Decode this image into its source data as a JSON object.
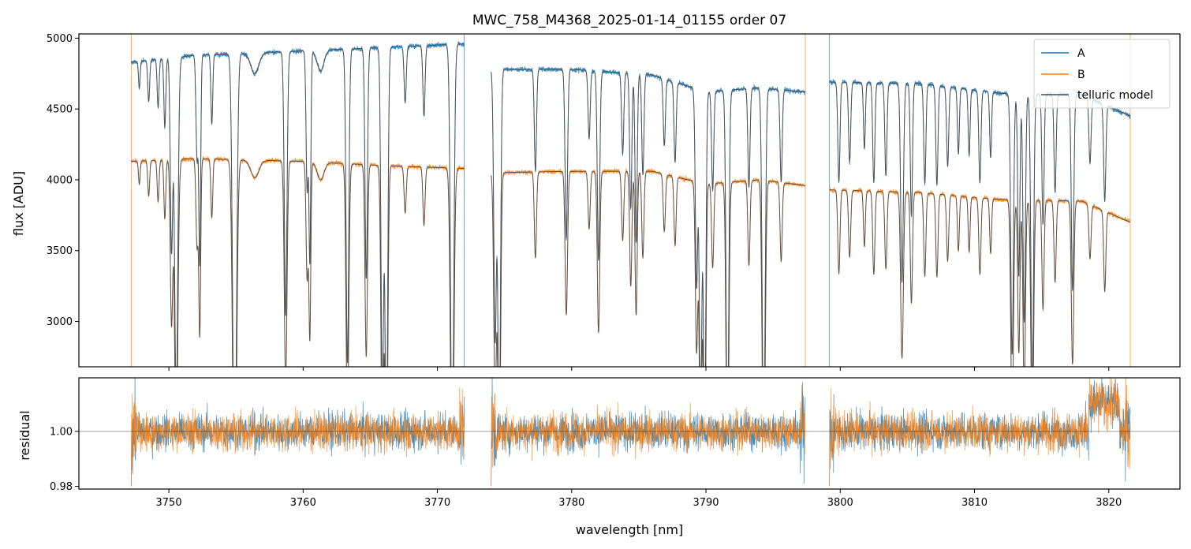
{
  "chart_data": [
    {
      "panel": "top",
      "type": "line",
      "title": "MWC_758_M4368_2025-01-14_01155  order 07",
      "xlabel": "",
      "ylabel": "flux [ADU]",
      "xlim": [
        3743.3,
        3825.3
      ],
      "ylim": [
        2680,
        5030
      ],
      "yticks": [
        3000,
        3500,
        4000,
        4500,
        5000
      ],
      "yticklabels": [
        "3000",
        "3500",
        "4000",
        "4500",
        "5000"
      ],
      "xticks": [
        3750,
        3760,
        3770,
        3780,
        3790,
        3800,
        3810,
        3820
      ],
      "legend": {
        "location": "top-right",
        "entries": [
          {
            "label": "A",
            "color": "#1f77b4"
          },
          {
            "label": "B",
            "color": "#ff7f0e"
          },
          {
            "label": "telluric model",
            "color": "#4d4d4d"
          }
        ]
      },
      "segments": [
        [
          3747.2,
          3772.0
        ],
        [
          3774.0,
          3797.4
        ],
        [
          3799.2,
          3821.6
        ]
      ],
      "series": [
        {
          "name": "A",
          "color": "#1f77b4",
          "continuum": [
            [
              3747.2,
              4830
            ],
            [
              3752,
              4880
            ],
            [
              3760,
              4910
            ],
            [
              3765,
              4930
            ],
            [
              3772,
              4960
            ],
            [
              3774,
              4780
            ],
            [
              3780,
              4780
            ],
            [
              3786,
              4740
            ],
            [
              3790,
              4620
            ],
            [
              3794,
              4650
            ],
            [
              3797.4,
              4620
            ],
            [
              3799.2,
              4690
            ],
            [
              3806,
              4680
            ],
            [
              3812,
              4610
            ],
            [
              3818,
              4600
            ],
            [
              3821.6,
              4450
            ]
          ]
        },
        {
          "name": "B",
          "color": "#ff7f0e",
          "continuum": [
            [
              3747.2,
              4130
            ],
            [
              3752,
              4150
            ],
            [
              3760,
              4130
            ],
            [
              3766,
              4100
            ],
            [
              3772,
              4080
            ],
            [
              3774,
              4050
            ],
            [
              3780,
              4060
            ],
            [
              3786,
              4060
            ],
            [
              3790,
              3970
            ],
            [
              3794,
              4000
            ],
            [
              3797.4,
              3960
            ],
            [
              3799.2,
              3930
            ],
            [
              3806,
              3910
            ],
            [
              3812,
              3860
            ],
            [
              3818,
              3850
            ],
            [
              3821.6,
              3700
            ]
          ]
        },
        {
          "name": "telluric model",
          "color": "#4d4d4d"
        }
      ],
      "absorption_lines": [
        {
          "x": 3747.8,
          "depth": 0.04,
          "width": 0.06
        },
        {
          "x": 3748.5,
          "depth": 0.06,
          "width": 0.07
        },
        {
          "x": 3749.2,
          "depth": 0.07,
          "width": 0.07
        },
        {
          "x": 3749.7,
          "depth": 0.1,
          "width": 0.07
        },
        {
          "x": 3750.2,
          "depth": 0.28,
          "width": 0.09
        },
        {
          "x": 3750.55,
          "depth": 0.5,
          "width": 0.12
        },
        {
          "x": 3752.1,
          "depth": 0.15,
          "width": 0.08
        },
        {
          "x": 3752.3,
          "depth": 0.3,
          "width": 0.07
        },
        {
          "x": 3753.2,
          "depth": 0.1,
          "width": 0.07
        },
        {
          "x": 3754.9,
          "depth": 0.65,
          "width": 0.14
        },
        {
          "x": 3756.4,
          "depth": 0.03,
          "width": 0.3
        },
        {
          "x": 3758.7,
          "depth": 0.38,
          "width": 0.1
        },
        {
          "x": 3760.3,
          "depth": 0.2,
          "width": 0.08
        },
        {
          "x": 3760.5,
          "depth": 0.3,
          "width": 0.07
        },
        {
          "x": 3761.3,
          "depth": 0.03,
          "width": 0.25
        },
        {
          "x": 3763.3,
          "depth": 0.45,
          "width": 0.1
        },
        {
          "x": 3764.7,
          "depth": 0.33,
          "width": 0.09
        },
        {
          "x": 3765.9,
          "depth": 0.5,
          "width": 0.1
        },
        {
          "x": 3766.2,
          "depth": 0.6,
          "width": 0.1
        },
        {
          "x": 3767.6,
          "depth": 0.08,
          "width": 0.08
        },
        {
          "x": 3769.0,
          "depth": 0.1,
          "width": 0.08
        },
        {
          "x": 3771.1,
          "depth": 0.6,
          "width": 0.12
        },
        {
          "x": 3774.3,
          "depth": 0.4,
          "width": 0.1
        },
        {
          "x": 3774.6,
          "depth": 0.55,
          "width": 0.1
        },
        {
          "x": 3777.3,
          "depth": 0.15,
          "width": 0.08
        },
        {
          "x": 3779.6,
          "depth": 0.25,
          "width": 0.09
        },
        {
          "x": 3781.3,
          "depth": 0.1,
          "width": 0.08
        },
        {
          "x": 3782.0,
          "depth": 0.28,
          "width": 0.09
        },
        {
          "x": 3783.8,
          "depth": 0.12,
          "width": 0.08
        },
        {
          "x": 3784.4,
          "depth": 0.2,
          "width": 0.08
        },
        {
          "x": 3784.8,
          "depth": 0.25,
          "width": 0.08
        },
        {
          "x": 3785.3,
          "depth": 0.15,
          "width": 0.08
        },
        {
          "x": 3786.9,
          "depth": 0.1,
          "width": 0.08
        },
        {
          "x": 3787.7,
          "depth": 0.12,
          "width": 0.08
        },
        {
          "x": 3789.3,
          "depth": 0.3,
          "width": 0.09
        },
        {
          "x": 3789.6,
          "depth": 0.5,
          "width": 0.1
        },
        {
          "x": 3789.9,
          "depth": 0.55,
          "width": 0.09
        },
        {
          "x": 3790.5,
          "depth": 0.15,
          "width": 0.08
        },
        {
          "x": 3791.6,
          "depth": 0.55,
          "width": 0.1
        },
        {
          "x": 3793.2,
          "depth": 0.15,
          "width": 0.08
        },
        {
          "x": 3794.3,
          "depth": 0.55,
          "width": 0.11
        },
        {
          "x": 3795.6,
          "depth": 0.14,
          "width": 0.08
        },
        {
          "x": 3799.9,
          "depth": 0.15,
          "width": 0.08
        },
        {
          "x": 3800.7,
          "depth": 0.12,
          "width": 0.08
        },
        {
          "x": 3801.8,
          "depth": 0.1,
          "width": 0.07
        },
        {
          "x": 3802.5,
          "depth": 0.15,
          "width": 0.08
        },
        {
          "x": 3803.4,
          "depth": 0.14,
          "width": 0.08
        },
        {
          "x": 3804.6,
          "depth": 0.3,
          "width": 0.1
        },
        {
          "x": 3805.3,
          "depth": 0.2,
          "width": 0.08
        },
        {
          "x": 3806.3,
          "depth": 0.15,
          "width": 0.08
        },
        {
          "x": 3807.2,
          "depth": 0.15,
          "width": 0.08
        },
        {
          "x": 3808.0,
          "depth": 0.12,
          "width": 0.08
        },
        {
          "x": 3808.8,
          "depth": 0.1,
          "width": 0.07
        },
        {
          "x": 3809.6,
          "depth": 0.1,
          "width": 0.07
        },
        {
          "x": 3810.4,
          "depth": 0.14,
          "width": 0.08
        },
        {
          "x": 3811.2,
          "depth": 0.1,
          "width": 0.07
        },
        {
          "x": 3812.8,
          "depth": 0.4,
          "width": 0.1
        },
        {
          "x": 3813.3,
          "depth": 0.28,
          "width": 0.08
        },
        {
          "x": 3813.7,
          "depth": 0.35,
          "width": 0.09
        },
        {
          "x": 3814.3,
          "depth": 0.45,
          "width": 0.1
        },
        {
          "x": 3815.1,
          "depth": 0.2,
          "width": 0.08
        },
        {
          "x": 3816.0,
          "depth": 0.15,
          "width": 0.08
        },
        {
          "x": 3817.3,
          "depth": 0.3,
          "width": 0.09
        },
        {
          "x": 3818.6,
          "depth": 0.1,
          "width": 0.08
        },
        {
          "x": 3819.7,
          "depth": 0.15,
          "width": 0.08
        }
      ]
    },
    {
      "panel": "bottom",
      "type": "line",
      "title": "",
      "xlabel": "wavelength [nm]",
      "ylabel": "residual",
      "xlim": [
        3743.3,
        3825.3
      ],
      "ylim": [
        0.979,
        1.0195
      ],
      "yticks": [
        0.98,
        1.0
      ],
      "yticklabels": [
        "0.98",
        "1.00"
      ],
      "xticks": [
        3750,
        3760,
        3770,
        3780,
        3790,
        3800,
        3810,
        3820
      ],
      "xticklabels": [
        "3750",
        "3760",
        "3770",
        "3780",
        "3790",
        "3800",
        "3810",
        "3820"
      ],
      "reference_line": 1.0,
      "series": [
        {
          "name": "A",
          "color": "#1f77b4",
          "center": 1.0,
          "noise": 0.006
        },
        {
          "name": "B",
          "color": "#ff7f0e",
          "center": 1.0,
          "noise": 0.006
        }
      ]
    }
  ]
}
